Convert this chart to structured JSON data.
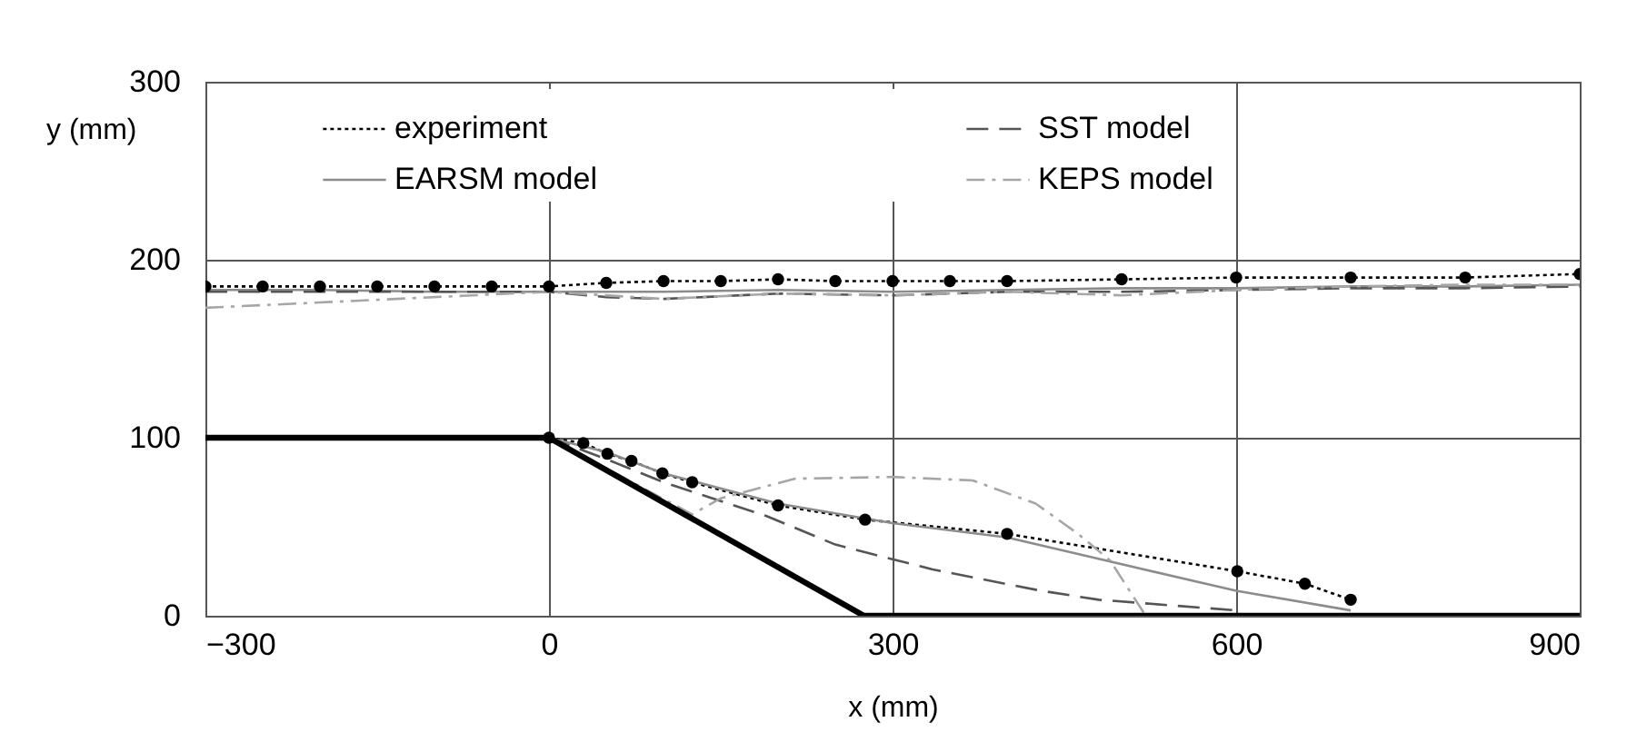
{
  "chart_data": {
    "type": "line",
    "xlabel": "x (mm)",
    "ylabel": "y (mm)",
    "xlim": [
      -300,
      900
    ],
    "ylim": [
      0,
      300
    ],
    "xticks": [
      -300,
      0,
      300,
      600,
      900
    ],
    "yticks": [
      0,
      100,
      200,
      300
    ],
    "grid": true,
    "legend": "top",
    "series": [
      {
        "name": "experiment",
        "color": "#000000",
        "line_style": "dotted",
        "marker": "circle",
        "x": [
          -300,
          -250,
          -200,
          -150,
          -100,
          -50,
          0,
          50,
          100,
          150,
          200,
          250,
          300,
          350,
          400,
          500,
          600,
          700,
          800,
          900,
          null,
          0,
          30,
          51,
          72,
          99,
          125,
          200,
          276,
          400,
          601,
          660,
          700
        ],
        "values": [
          185,
          185,
          185,
          185,
          185,
          185,
          185,
          187,
          188,
          188,
          189,
          188,
          188,
          188,
          188,
          189,
          190,
          190,
          190,
          192,
          null,
          100,
          97,
          91,
          87,
          80,
          75,
          62,
          54,
          46,
          25,
          18,
          9
        ]
      },
      {
        "name": "EARSM model",
        "color": "#8c8c8c",
        "line_style": "solid",
        "marker": "none",
        "x": [
          -300,
          -200,
          -100,
          0,
          100,
          200,
          300,
          400,
          500,
          600,
          700,
          800,
          900,
          null,
          0,
          50,
          100,
          200,
          300,
          400,
          473,
          600,
          700
        ],
        "values": [
          183,
          183,
          182,
          182,
          182,
          183,
          182,
          183,
          184,
          184,
          185,
          185,
          186,
          null,
          100,
          92,
          80,
          63,
          52,
          44,
          33,
          14,
          3
        ]
      },
      {
        "name": "SST model",
        "color": "#555555",
        "line_style": "dashed",
        "marker": "none",
        "x": [
          -300,
          -200,
          -100,
          0,
          50,
          100,
          200,
          300,
          400,
          500,
          600,
          700,
          800,
          900,
          null,
          0,
          50,
          100,
          190,
          250,
          335,
          430,
          480,
          540,
          600
        ],
        "values": [
          182,
          182,
          182,
          182,
          179,
          178,
          181,
          180,
          182,
          182,
          183,
          184,
          184,
          185,
          null,
          100,
          88,
          75,
          56,
          40,
          26,
          14,
          9,
          6,
          3
        ]
      },
      {
        "name": "KEPS model",
        "color": "#a6a6a6",
        "line_style": "dashdot",
        "marker": "none",
        "x": [
          -300,
          -200,
          -100,
          0,
          100,
          200,
          300,
          400,
          500,
          600,
          700,
          800,
          900,
          null,
          0,
          125,
          150,
          215,
          300,
          370,
          425,
          462,
          490,
          521
        ],
        "values": [
          173,
          176,
          179,
          182,
          178,
          181,
          180,
          182,
          180,
          183,
          185,
          186,
          186,
          null,
          100,
          57,
          66,
          77,
          78,
          76,
          63,
          46,
          31,
          0
        ]
      },
      {
        "color": "#000000",
        "line_style": "solid",
        "marker": "none",
        "x": [
          -300,
          0,
          275,
          900
        ],
        "values": [
          100,
          100,
          0,
          0
        ]
      }
    ]
  }
}
